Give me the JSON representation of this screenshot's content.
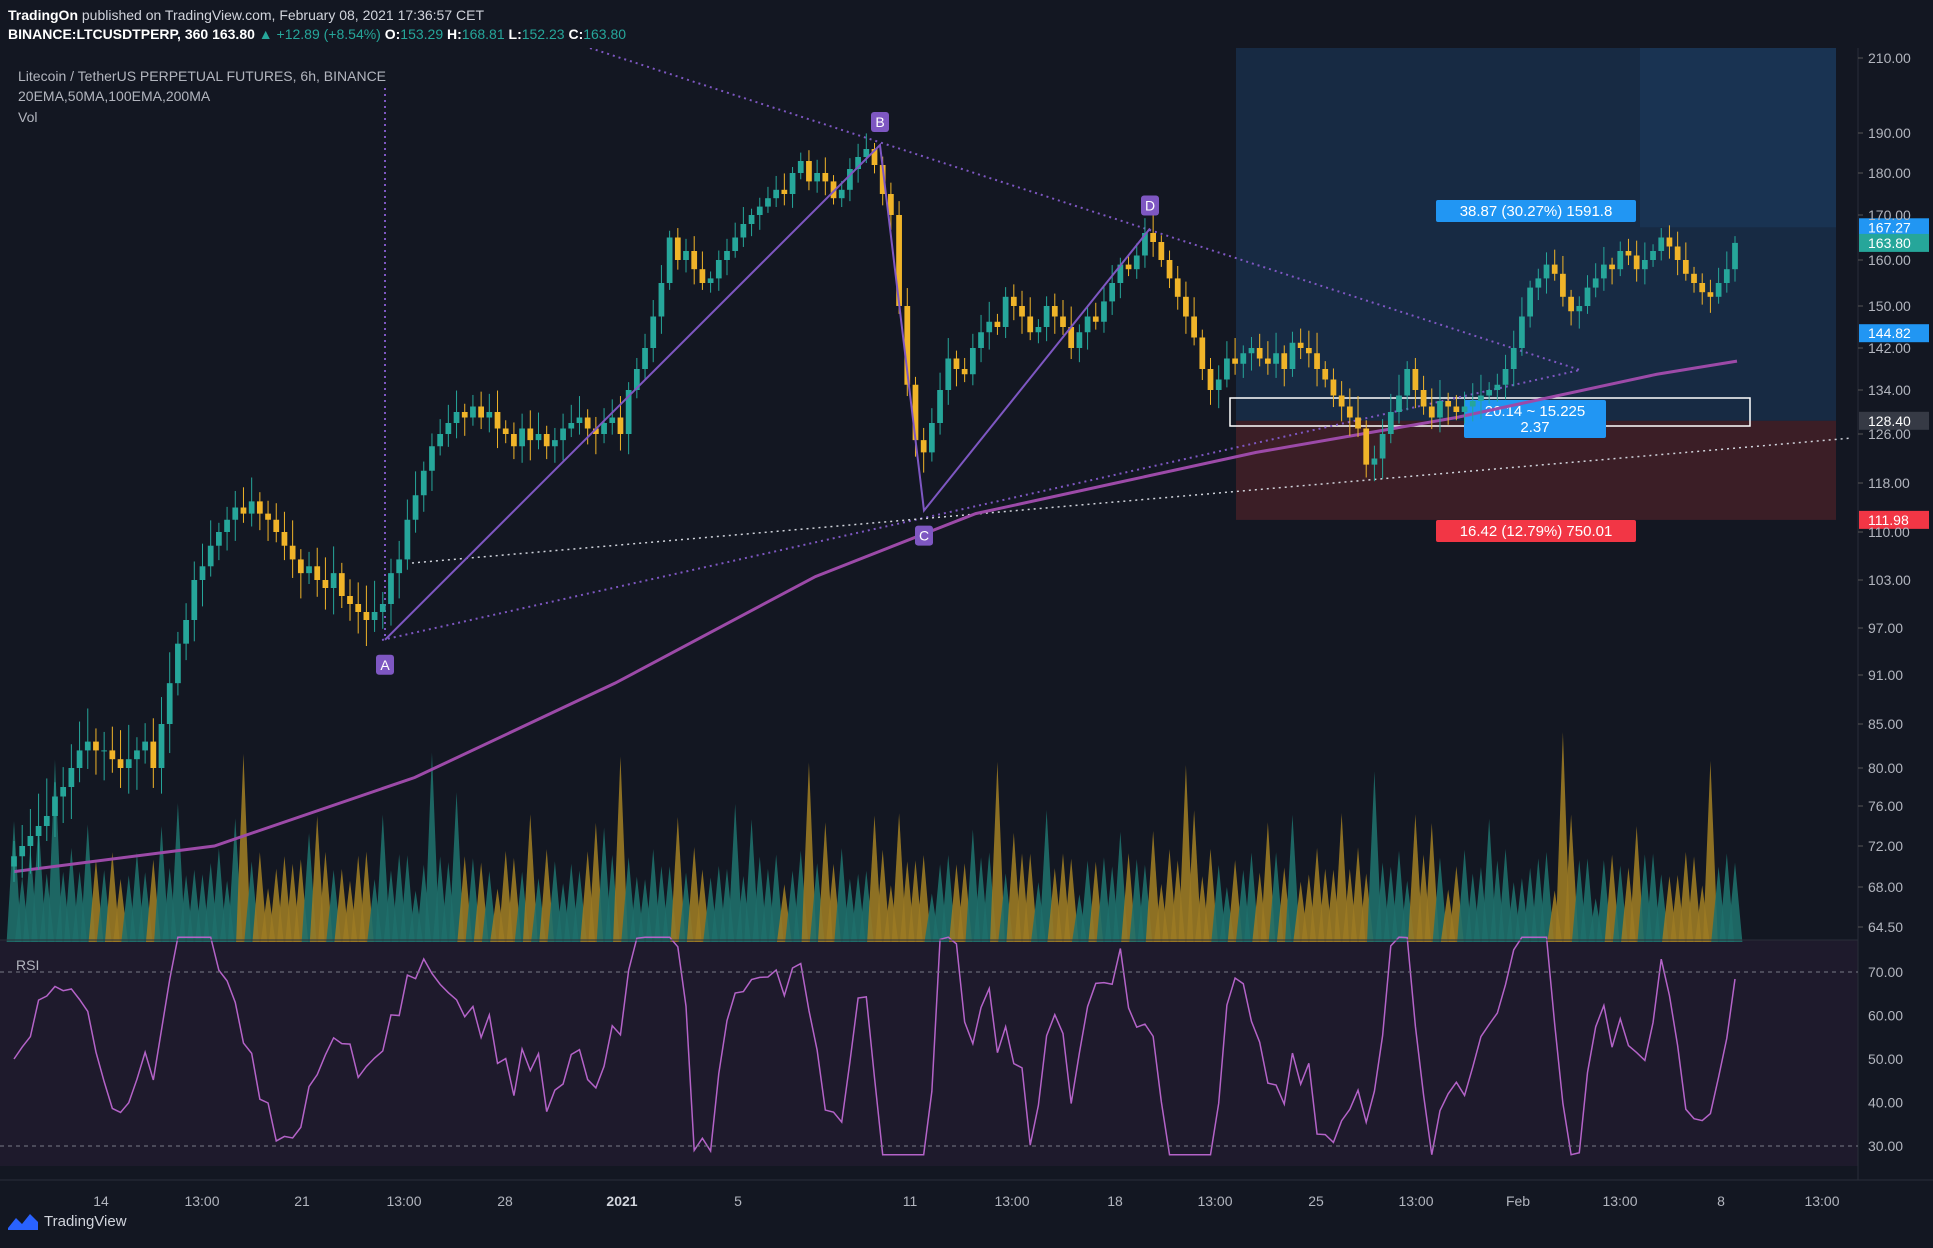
{
  "header": {
    "author": "TradingOn",
    "published": "published on TradingView.com, February 08, 2021 17:36:57 CET",
    "symbol_line": "BINANCE:LTCUSDTPERP, 360",
    "last": "163.80",
    "change": "+12.89 (+8.54%)",
    "o_label": "O:",
    "o": "153.29",
    "h_label": "H:",
    "h": "168.81",
    "l_label": "L:",
    "l": "152.23",
    "c_label": "C:",
    "c": "163.80"
  },
  "legend": {
    "title": "Litecoin / TetherUS PERPETUAL FUTURES, 6h, BINANCE",
    "indicators": "20EMA,50MA,100EMA,200MA",
    "vol": "Vol",
    "rsi": "RSI"
  },
  "footer": {
    "brand": "TradingView"
  },
  "colors": {
    "up": "#26a69a",
    "down": "#f0b429",
    "ma": "#9c4aa8",
    "rsi": "#b463c8",
    "pattern": "#7e57c2",
    "target": "#2196f3",
    "stop": "#f23645"
  },
  "chart_data": {
    "type": "candlestick",
    "timeframe": "6h",
    "y_ticks": [
      "210.00",
      "190.00",
      "180.00",
      "170.00",
      "160.00",
      "150.00",
      "142.00",
      "134.00",
      "126.00",
      "118.00",
      "110.00",
      "103.00",
      "97.00",
      "91.00",
      "85.00",
      "80.00",
      "76.00",
      "72.00",
      "68.00",
      "64.50"
    ],
    "price_tags": [
      {
        "label": "167.27",
        "kind": "target"
      },
      {
        "label": "163.80",
        "kind": "last"
      },
      {
        "label": "144.82",
        "kind": "mark"
      },
      {
        "label": "128.40",
        "kind": "entry"
      },
      {
        "label": "111.98",
        "kind": "stop"
      }
    ],
    "x_ticks": [
      "14",
      "13:00",
      "21",
      "13:00",
      "28",
      "2021",
      "5",
      "11",
      "13:00",
      "18",
      "13:00",
      "25",
      "13:00",
      "Feb",
      "13:00",
      "8",
      "13:00"
    ],
    "x_ticks_bold": [
      false,
      false,
      false,
      false,
      false,
      true,
      false,
      false,
      false,
      false,
      false,
      false,
      false,
      false,
      false,
      false,
      false
    ],
    "pattern_points": [
      {
        "label": "A",
        "price": 95.5
      },
      {
        "label": "B",
        "price": 187.0
      },
      {
        "label": "C",
        "price": 113.5
      },
      {
        "label": "D",
        "price": 167.0
      }
    ],
    "position": {
      "target_label": "38.87 (30.27%) 1591.8",
      "stop_label": "16.42 (12.79%) 750.01",
      "range_label": "20.14 ~ 15.225",
      "range_sub": "2.37",
      "entry": 128.4,
      "target": 167.27,
      "stop": 111.98
    },
    "ma200": [
      [
        0,
        69.5
      ],
      [
        0.1,
        72
      ],
      [
        0.2,
        79
      ],
      [
        0.3,
        90
      ],
      [
        0.4,
        103.5
      ],
      [
        0.48,
        113
      ],
      [
        0.55,
        118
      ],
      [
        0.62,
        123
      ],
      [
        0.72,
        129
      ],
      [
        0.82,
        137
      ],
      [
        0.86,
        139.5
      ]
    ],
    "closes": [
      71,
      72,
      73,
      74,
      75,
      77,
      78,
      80,
      82,
      83,
      82,
      82,
      81,
      80,
      81,
      82,
      83,
      80,
      85,
      90,
      95,
      98,
      103,
      105,
      108,
      110,
      112,
      114,
      113,
      115,
      113,
      112,
      110,
      108,
      106,
      104,
      105,
      103,
      102,
      104,
      101,
      100,
      99,
      98,
      99,
      100,
      104,
      106,
      112,
      116,
      120,
      124,
      126,
      128,
      130,
      129,
      131,
      129,
      130,
      127,
      126,
      124,
      127,
      125,
      126,
      124,
      125,
      127,
      128,
      129,
      127,
      126,
      128,
      129,
      126,
      134,
      138,
      142,
      148,
      155,
      165,
      160,
      162,
      158,
      155,
      156,
      160,
      162,
      165,
      168,
      170,
      172,
      174,
      176,
      175,
      180,
      183,
      178,
      180,
      178,
      174,
      176,
      181,
      184,
      186,
      182,
      175,
      170,
      150,
      135,
      125,
      123,
      128,
      134,
      140,
      138,
      137,
      142,
      145,
      147,
      146,
      152,
      150,
      148,
      145,
      146,
      150,
      148,
      146,
      142,
      145,
      148,
      147,
      151,
      155,
      159,
      158,
      161,
      166,
      164,
      160,
      156,
      152,
      148,
      144,
      138,
      134,
      136,
      140,
      139,
      141,
      142,
      140,
      139,
      141,
      138,
      143,
      142,
      141,
      138,
      136,
      133,
      131,
      129,
      127,
      121,
      122,
      126,
      130,
      133,
      138,
      134,
      131,
      129,
      132,
      131,
      130,
      131,
      132,
      133,
      134,
      135,
      138,
      142,
      148,
      154,
      156,
      159,
      157,
      152,
      149,
      150,
      154,
      156,
      159,
      158,
      162,
      161,
      158,
      160,
      162,
      165,
      163,
      160,
      157,
      155,
      153,
      152,
      155,
      158,
      163.8
    ],
    "volume_note": "relative volume per bar",
    "rsi_ticks": [
      "70.00",
      "60.00",
      "50.00",
      "40.00",
      "30.00"
    ],
    "rsi_levels": [
      70,
      30
    ]
  }
}
